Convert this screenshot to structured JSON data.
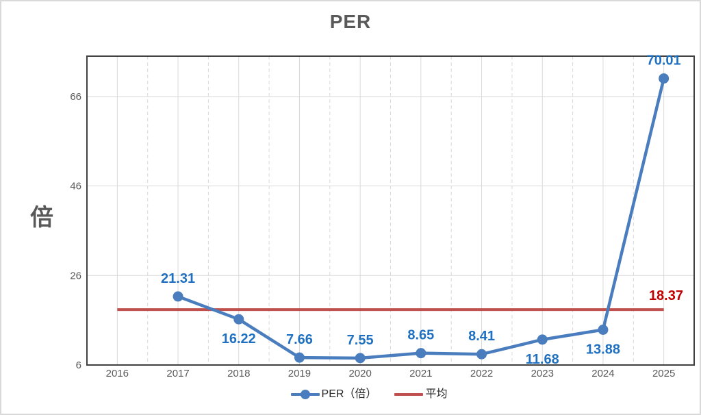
{
  "page": {
    "background": "#FFFFFF",
    "border_color": "#D9D9D9"
  },
  "chart_data": {
    "type": "line",
    "title": "PER",
    "ylabel": "倍",
    "categories": [
      "2016",
      "2017",
      "2018",
      "2019",
      "2020",
      "2021",
      "2022",
      "2023",
      "2024",
      "2025"
    ],
    "series": [
      {
        "name": "PER（倍）",
        "color": "#4A7DBE",
        "label_color": "#1F70C1",
        "values": [
          null,
          21.31,
          16.22,
          7.66,
          7.55,
          8.65,
          8.41,
          11.68,
          13.88,
          70.01
        ],
        "labels": [
          "",
          "21.31",
          "16.22",
          "7.66",
          "7.55",
          "8.65",
          "8.41",
          "11.68",
          "13.88",
          "70.01"
        ],
        "label_positions": [
          null,
          "above",
          "below",
          "above",
          "above",
          "above",
          "above",
          "below",
          "below",
          "above"
        ],
        "marker": "circle"
      },
      {
        "name": "平均",
        "color": "#C0504D",
        "value": 18.37,
        "label": "18.37",
        "label_color": "#C00000"
      }
    ],
    "yticks": [
      "6",
      "26",
      "46",
      "66"
    ],
    "ylim": [
      6,
      75
    ],
    "legend_position": "bottom",
    "grid": {
      "color": "#D9D9D9",
      "minor_vertical_style": "dashed"
    },
    "axis_text_color": "#595959",
    "plot_border_color": "#404040"
  }
}
